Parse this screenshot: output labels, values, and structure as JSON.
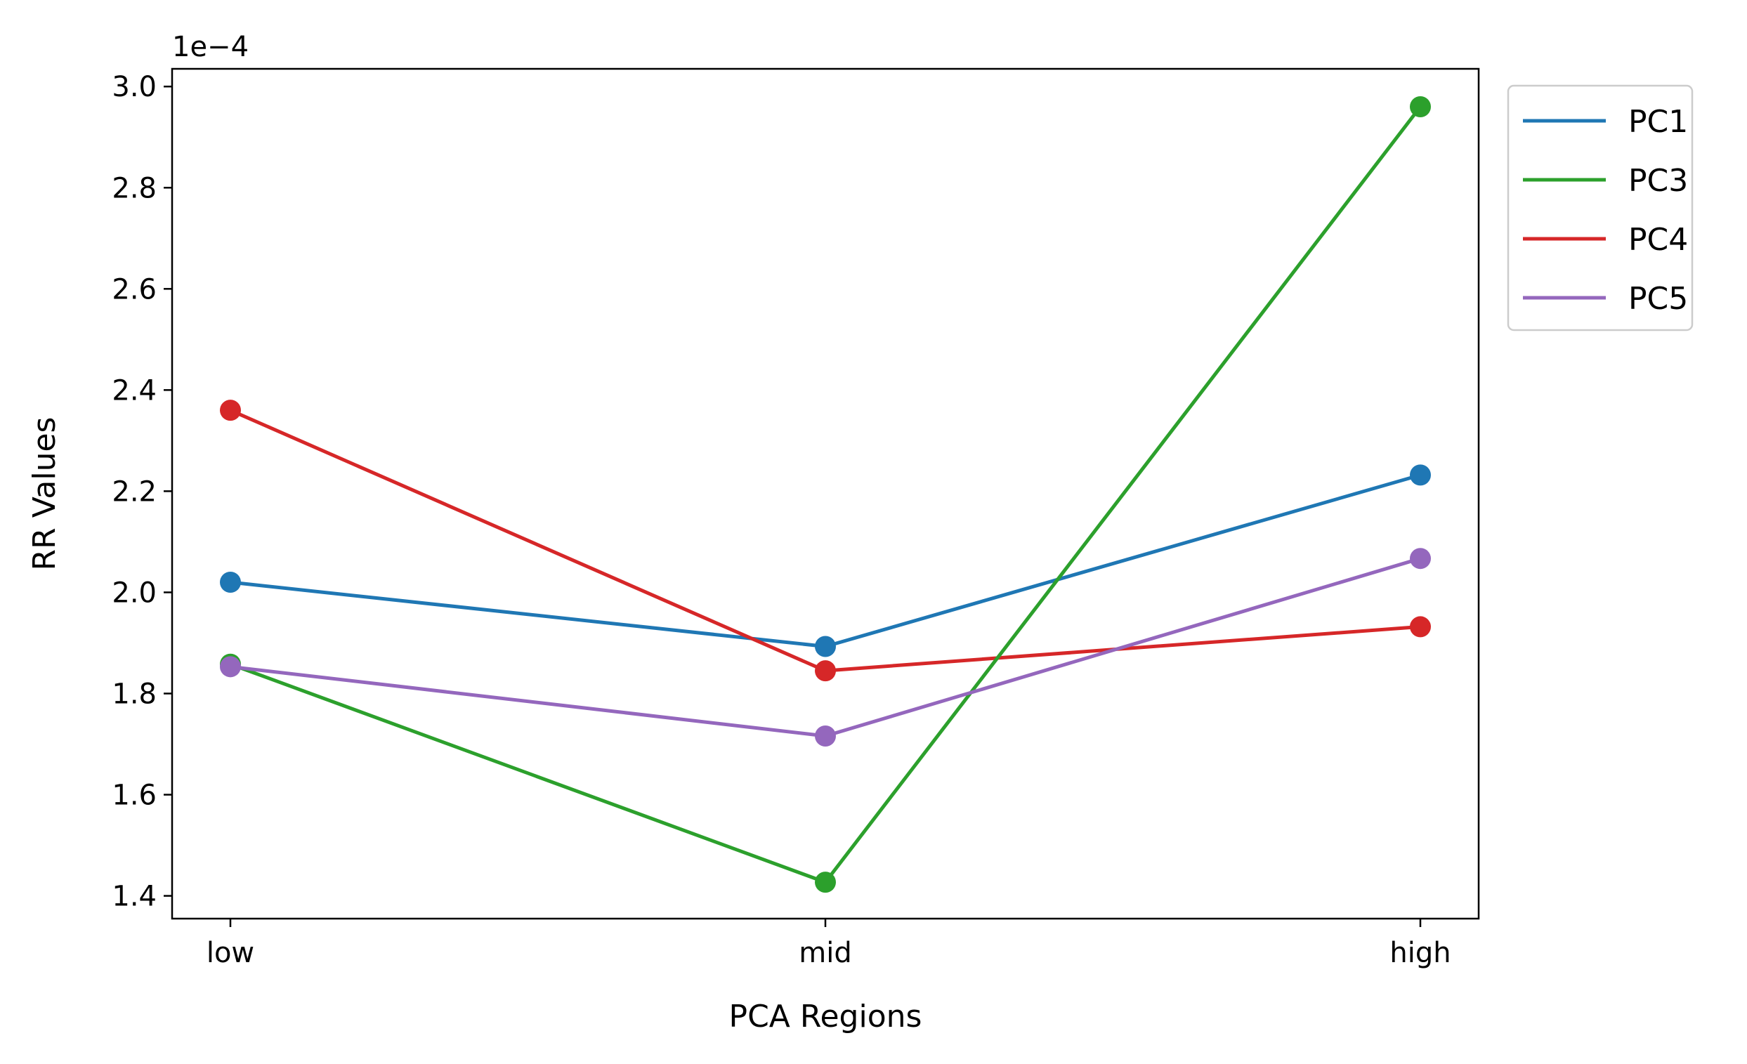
{
  "chart_data": {
    "type": "line",
    "title": "",
    "xlabel": "PCA Regions",
    "ylabel": "RR Values",
    "offset_label": "1e−4",
    "categories": [
      "low",
      "mid",
      "high"
    ],
    "y_scale_exponent": -4,
    "ylim": [
      1.355,
      3.035
    ],
    "yticks": [
      1.4,
      1.6,
      1.8,
      2.0,
      2.2,
      2.4,
      2.6,
      2.8,
      3.0
    ],
    "ytick_labels": [
      "1.4",
      "1.6",
      "1.8",
      "2.0",
      "2.2",
      "2.4",
      "2.6",
      "2.8",
      "3.0"
    ],
    "grid": false,
    "legend_position": "outside-top-right",
    "series": [
      {
        "name": "PC1",
        "color": "#1f77b4",
        "values": [
          2.02,
          1.893,
          2.232
        ]
      },
      {
        "name": "PC3",
        "color": "#2ca02c",
        "values": [
          1.858,
          1.427,
          2.96
        ]
      },
      {
        "name": "PC4",
        "color": "#d62728",
        "values": [
          2.36,
          1.845,
          1.932
        ]
      },
      {
        "name": "PC5",
        "color": "#9467bd",
        "values": [
          1.853,
          1.716,
          2.067
        ]
      }
    ],
    "legend_order": [
      0,
      1,
      2,
      3
    ],
    "draw_order": [
      0,
      2,
      1,
      3
    ]
  }
}
